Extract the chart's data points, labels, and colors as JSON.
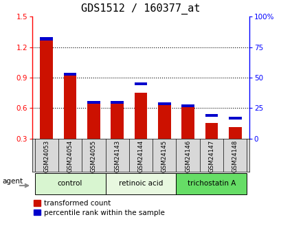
{
  "title": "GDS1512 / 160377_at",
  "samples": [
    "GSM24053",
    "GSM24054",
    "GSM24055",
    "GSM24143",
    "GSM24144",
    "GSM24145",
    "GSM24146",
    "GSM24147",
    "GSM24148"
  ],
  "red_values": [
    1.27,
    0.935,
    0.67,
    0.67,
    0.75,
    0.655,
    0.635,
    0.455,
    0.415
  ],
  "blue_percentile": [
    83,
    54,
    27,
    25,
    46,
    22,
    22,
    20,
    18
  ],
  "groups": [
    {
      "label": "control",
      "start": 0,
      "end": 3,
      "color": "#d8f5d0"
    },
    {
      "label": "retinoic acid",
      "start": 3,
      "end": 6,
      "color": "#e8f8e0"
    },
    {
      "label": "trichostatin A",
      "start": 6,
      "end": 9,
      "color": "#66dd66"
    }
  ],
  "ylim_left": [
    0.3,
    1.5
  ],
  "ylim_right": [
    0,
    100
  ],
  "yticks_left": [
    0.3,
    0.6,
    0.9,
    1.2,
    1.5
  ],
  "yticks_right": [
    0,
    25,
    50,
    75,
    100
  ],
  "ytick_labels_right": [
    "0",
    "25",
    "50",
    "75",
    "100%"
  ],
  "bar_width": 0.55,
  "red_color": "#cc1100",
  "blue_color": "#0000cc",
  "title_fontsize": 11,
  "tick_fontsize": 7.5,
  "legend_fontsize": 7.5,
  "agent_label": "agent",
  "sample_bg_color": "#d8d8d8",
  "blue_square_size": 0.028
}
